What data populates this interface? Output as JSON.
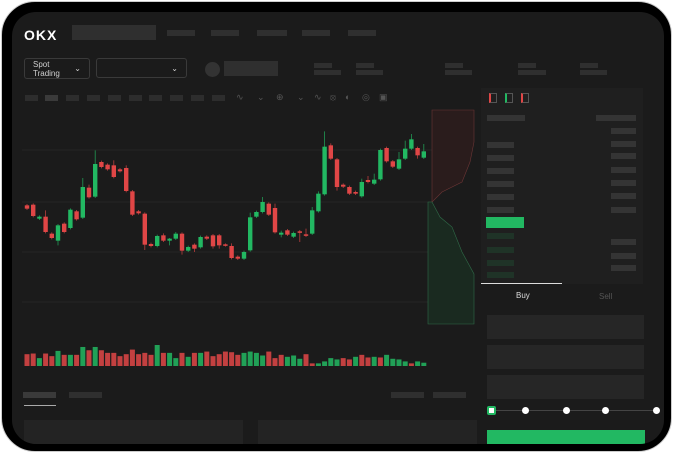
{
  "brand": {
    "logo_text": "OKX"
  },
  "toolbar": {
    "market_selector": "Spot Trading",
    "market_chevron": "chevron-down-icon",
    "pair_chevron": "chevron-down-icon"
  },
  "tool_icons": [
    "indicator-icon",
    "check-chevron-icon",
    "timeframe-icon",
    "chevron-icon",
    "line-icon",
    "ruler-icon",
    "camera-icon",
    "settings-icon",
    "expand-icon"
  ],
  "order_form": {
    "tabs": [
      "Buy",
      "Sell"
    ],
    "active_tab": "Buy",
    "leverage_slider_level": 0
  },
  "colors": {
    "up": "#22b862",
    "down": "#e04646",
    "background": "#1b1b1b",
    "accent": "#22b862"
  },
  "chart_data": {
    "type": "candlestick",
    "grid": true,
    "candles_ohlc": [
      [
        210,
        200,
        214,
        196
      ],
      [
        212,
        178,
        216,
        174
      ],
      [
        170,
        176,
        180,
        166
      ],
      [
        176,
        130,
        195,
        126
      ],
      [
        125,
        112,
        129,
        108
      ],
      [
        104,
        150,
        154,
        90
      ],
      [
        155,
        130,
        159,
        126
      ],
      [
        142,
        197,
        201,
        138
      ],
      [
        192,
        168,
        196,
        164
      ],
      [
        173,
        265,
        292,
        169
      ],
      [
        263,
        234,
        272,
        230
      ],
      [
        236,
        334,
        375,
        232
      ],
      [
        340,
        325,
        344,
        321
      ],
      [
        332,
        318,
        336,
        314
      ],
      [
        330,
        295,
        345,
        291
      ],
      [
        318,
        312,
        322,
        308
      ],
      [
        322,
        253,
        330,
        249
      ],
      [
        252,
        182,
        256,
        178
      ],
      [
        192,
        186,
        196,
        182
      ],
      [
        185,
        92,
        189,
        76
      ],
      [
        94,
        88,
        98,
        84
      ],
      [
        88,
        118,
        122,
        84
      ],
      [
        120,
        104,
        126,
        100
      ],
      [
        104,
        110,
        112,
        90
      ],
      [
        110,
        125,
        130,
        106
      ],
      [
        125,
        74,
        129,
        62
      ],
      [
        74,
        85,
        89,
        70
      ],
      [
        92,
        80,
        96,
        70
      ],
      [
        84,
        115,
        119,
        80
      ],
      [
        116,
        110,
        120,
        106
      ],
      [
        120,
        87,
        124,
        80
      ],
      [
        120,
        90,
        124,
        80
      ],
      [
        93,
        90,
        96,
        86
      ],
      [
        88,
        52,
        96,
        48
      ],
      [
        56,
        50,
        60,
        46
      ],
      [
        50,
        70,
        74,
        46
      ],
      [
        75,
        174,
        188,
        71
      ],
      [
        176,
        190,
        194,
        172
      ],
      [
        190,
        220,
        235,
        186
      ],
      [
        215,
        182,
        219,
        178
      ],
      [
        202,
        129,
        215,
        125
      ],
      [
        122,
        128,
        134,
        114
      ],
      [
        135,
        122,
        139,
        118
      ],
      [
        116,
        127,
        131,
        112
      ],
      [
        132,
        129,
        136,
        100
      ],
      [
        123,
        119,
        140,
        115
      ],
      [
        125,
        195,
        205,
        121
      ],
      [
        192,
        245,
        252,
        188
      ],
      [
        243,
        386,
        432,
        239
      ],
      [
        390,
        350,
        396,
        346
      ],
      [
        348,
        265,
        352,
        254
      ],
      [
        272,
        266,
        276,
        262
      ],
      [
        265,
        245,
        269,
        241
      ],
      [
        250,
        245,
        254,
        241
      ],
      [
        237,
        280,
        290,
        233
      ],
      [
        286,
        280,
        298,
        276
      ],
      [
        275,
        287,
        305,
        271
      ],
      [
        288,
        376,
        380,
        284
      ],
      [
        382,
        342,
        386,
        338
      ],
      [
        342,
        326,
        346,
        322
      ],
      [
        320,
        348,
        370,
        316
      ],
      [
        350,
        380,
        404,
        346
      ],
      [
        380,
        408,
        424,
        376
      ],
      [
        382,
        360,
        386,
        350
      ],
      [
        353,
        372,
        394,
        349
      ]
    ],
    "volume": [
      {
        "v": 36,
        "up": false
      },
      {
        "v": 38,
        "up": false
      },
      {
        "v": 24,
        "up": true
      },
      {
        "v": 38,
        "up": false
      },
      {
        "v": 30,
        "up": false
      },
      {
        "v": 46,
        "up": true
      },
      {
        "v": 34,
        "up": false
      },
      {
        "v": 34,
        "up": true
      },
      {
        "v": 34,
        "up": false
      },
      {
        "v": 58,
        "up": true
      },
      {
        "v": 48,
        "up": false
      },
      {
        "v": 58,
        "up": true
      },
      {
        "v": 48,
        "up": false
      },
      {
        "v": 40,
        "up": false
      },
      {
        "v": 40,
        "up": false
      },
      {
        "v": 30,
        "up": false
      },
      {
        "v": 36,
        "up": false
      },
      {
        "v": 50,
        "up": false
      },
      {
        "v": 36,
        "up": false
      },
      {
        "v": 40,
        "up": false
      },
      {
        "v": 34,
        "up": false
      },
      {
        "v": 64,
        "up": true
      },
      {
        "v": 40,
        "up": false
      },
      {
        "v": 40,
        "up": true
      },
      {
        "v": 24,
        "up": true
      },
      {
        "v": 40,
        "up": false
      },
      {
        "v": 28,
        "up": true
      },
      {
        "v": 40,
        "up": false
      },
      {
        "v": 40,
        "up": true
      },
      {
        "v": 44,
        "up": false
      },
      {
        "v": 30,
        "up": false
      },
      {
        "v": 36,
        "up": false
      },
      {
        "v": 44,
        "up": false
      },
      {
        "v": 42,
        "up": false
      },
      {
        "v": 34,
        "up": false
      },
      {
        "v": 40,
        "up": true
      },
      {
        "v": 44,
        "up": true
      },
      {
        "v": 40,
        "up": true
      },
      {
        "v": 32,
        "up": true
      },
      {
        "v": 44,
        "up": false
      },
      {
        "v": 24,
        "up": false
      },
      {
        "v": 34,
        "up": false
      },
      {
        "v": 28,
        "up": true
      },
      {
        "v": 32,
        "up": true
      },
      {
        "v": 22,
        "up": true
      },
      {
        "v": 36,
        "up": false
      },
      {
        "v": 8,
        "up": false
      },
      {
        "v": 8,
        "up": true
      },
      {
        "v": 14,
        "up": true
      },
      {
        "v": 24,
        "up": true
      },
      {
        "v": 20,
        "up": true
      },
      {
        "v": 24,
        "up": false
      },
      {
        "v": 20,
        "up": false
      },
      {
        "v": 28,
        "up": true
      },
      {
        "v": 34,
        "up": false
      },
      {
        "v": 26,
        "up": false
      },
      {
        "v": 28,
        "up": true
      },
      {
        "v": 26,
        "up": false
      },
      {
        "v": 34,
        "up": true
      },
      {
        "v": 22,
        "up": true
      },
      {
        "v": 20,
        "up": true
      },
      {
        "v": 14,
        "up": true
      },
      {
        "v": 8,
        "up": false
      },
      {
        "v": 14,
        "up": true
      },
      {
        "v": 10,
        "up": true
      }
    ]
  }
}
